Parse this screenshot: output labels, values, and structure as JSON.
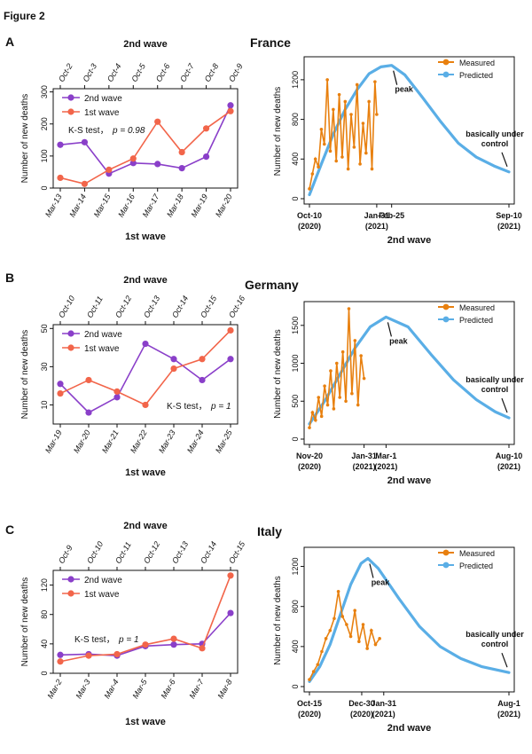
{
  "figure_title": "Figure 2",
  "colors": {
    "wave2": "#8a3fc9",
    "wave1": "#f2654a",
    "measured": "#e8800f",
    "predicted": "#5aaee6",
    "axis": "#111111"
  },
  "panels": [
    {
      "letter": "A",
      "country": "France",
      "left": {
        "top_label": "2nd wave",
        "bottom_label": "1st wave",
        "ylabel": "Number of new deaths",
        "test_label": "K-S test，",
        "test_p": "p = 0.98",
        "legend": [
          "2nd wave",
          "1st wave"
        ]
      },
      "right": {
        "ylabel": "Number of new deaths",
        "xlabel": "2nd wave",
        "legend": [
          "Measured",
          "Predicted"
        ],
        "peak_label": "peak",
        "control_label": [
          "basically under",
          "control"
        ],
        "date_ticks": [
          {
            "label": "Oct-10",
            "year": "(2020)"
          },
          {
            "label": "Jan-31",
            "year": "(2021)"
          },
          {
            "label": "Feb-25",
            "year": ""
          },
          {
            "label": "Sep-10",
            "year": "(2021)"
          }
        ]
      }
    },
    {
      "letter": "B",
      "country": "Germany",
      "left": {
        "top_label": "2nd wave",
        "bottom_label": "1st wave",
        "ylabel": "Number of new deaths",
        "test_label": "K-S test，",
        "test_p": "p = 1",
        "legend": [
          "2nd wave",
          "1st wave"
        ]
      },
      "right": {
        "ylabel": "Number of new deaths",
        "xlabel": "2nd wave",
        "legend": [
          "Measured",
          "Predicted"
        ],
        "peak_label": "peak",
        "control_label": [
          "basically under",
          "control"
        ],
        "date_ticks": [
          {
            "label": "Nov-20",
            "year": "(2020)"
          },
          {
            "label": "Jan-31",
            "year": "(2021)"
          },
          {
            "label": "Mar-1",
            "year": "(2021)"
          },
          {
            "label": "Aug-10",
            "year": "(2021)"
          }
        ]
      }
    },
    {
      "letter": "C",
      "country": "Italy",
      "left": {
        "top_label": "2nd wave",
        "bottom_label": "1st wave",
        "ylabel": "Number of new deaths",
        "test_label": "K-S test，",
        "test_p": "p = 1",
        "legend": [
          "2nd wave",
          "1st wave"
        ]
      },
      "right": {
        "ylabel": "Number of new deaths",
        "xlabel": "2nd wave",
        "legend": [
          "Measured",
          "Predicted"
        ],
        "peak_label": "peak",
        "control_label": [
          "basically under",
          "control"
        ],
        "date_ticks": [
          {
            "label": "Oct-15",
            "year": "(2020)"
          },
          {
            "label": "Dec-30",
            "year": "(2020)"
          },
          {
            "label": "Jan-31",
            "year": "(2021)"
          },
          {
            "label": "Aug-1",
            "year": "(2021)"
          }
        ]
      }
    }
  ],
  "chart_data": [
    {
      "type": "line",
      "panel": "A",
      "country": "France",
      "ylabel": "Number of new deaths",
      "xlabel": "1st wave",
      "top_xlabel": "2nd wave",
      "categories": [
        "Mar-13",
        "Mar-14",
        "Mar-15",
        "Mar-16",
        "Mar-17",
        "Mar-18",
        "Mar-19",
        "Mar-20"
      ],
      "top_categories": [
        "Oct-2",
        "Oct-3",
        "Oct-4",
        "Oct-5",
        "Oct-6",
        "Oct-7",
        "Oct-8",
        "Oct-9"
      ],
      "yticks": [
        0,
        100,
        200,
        300
      ],
      "ylim": [
        0,
        310
      ],
      "series": [
        {
          "name": "2nd wave",
          "values": [
            135,
            143,
            45,
            78,
            75,
            62,
            98,
            258
          ]
        },
        {
          "name": "1st wave",
          "values": [
            32,
            13,
            57,
            92,
            207,
            112,
            186,
            240
          ]
        }
      ],
      "annotation": "K-S test， p = 0.98"
    },
    {
      "type": "line",
      "panel": "A",
      "country": "France",
      "subtype": "time-series",
      "ylabel": "Number of new deaths",
      "xlabel": "2nd wave",
      "x_days_ticks": [
        0,
        113,
        138,
        335
      ],
      "xlim": [
        0,
        335
      ],
      "yticks": [
        0,
        400,
        800,
        1200
      ],
      "ylim": [
        0,
        1360
      ],
      "series": [
        {
          "name": "Measured",
          "x_days": [
            0,
            5,
            10,
            15,
            20,
            25,
            30,
            35,
            40,
            45,
            50,
            55,
            60,
            65,
            70,
            75,
            80,
            85,
            90,
            95,
            100,
            105,
            110,
            113
          ],
          "values": [
            100,
            250,
            400,
            320,
            700,
            550,
            1200,
            480,
            900,
            380,
            1050,
            420,
            980,
            300,
            850,
            520,
            1150,
            350,
            760,
            460,
            980,
            300,
            1180,
            850
          ]
        },
        {
          "name": "Predicted",
          "x_days": [
            0,
            20,
            40,
            60,
            80,
            100,
            120,
            138,
            160,
            190,
            220,
            250,
            280,
            310,
            335
          ],
          "values": [
            40,
            350,
            650,
            900,
            1100,
            1260,
            1330,
            1345,
            1250,
            1020,
            780,
            560,
            420,
            330,
            270
          ]
        }
      ],
      "annotations": [
        "peak",
        "basically under control"
      ]
    },
    {
      "type": "line",
      "panel": "B",
      "country": "Germany",
      "ylabel": "Number of new deaths",
      "xlabel": "1st wave",
      "top_xlabel": "2nd wave",
      "categories": [
        "Mar-19",
        "Mar-20",
        "Mar-21",
        "Mar-22",
        "Mar-23",
        "Mar-24",
        "Mar-25"
      ],
      "top_categories": [
        "Oct-10",
        "Oct-11",
        "Oct-12",
        "Oct-13",
        "Oct-14",
        "Oct-15",
        "Oct-16"
      ],
      "yticks": [
        10,
        30,
        50
      ],
      "ylim": [
        0,
        52
      ],
      "series": [
        {
          "name": "2nd wave",
          "values": [
            21,
            6,
            14,
            42,
            34,
            23,
            34
          ]
        },
        {
          "name": "1st wave",
          "values": [
            16,
            23,
            17,
            10,
            29,
            34,
            49
          ]
        }
      ],
      "annotation": "K-S test， p = 1"
    },
    {
      "type": "line",
      "panel": "B",
      "country": "Germany",
      "subtype": "time-series",
      "ylabel": "Number of new deaths",
      "xlabel": "2nd wave",
      "x_days_ticks": [
        0,
        72,
        101,
        263
      ],
      "xlim": [
        0,
        263
      ],
      "yticks": [
        0,
        500,
        1000,
        1500
      ],
      "ylim": [
        0,
        1720
      ],
      "series": [
        {
          "name": "Measured",
          "x_days": [
            0,
            4,
            8,
            12,
            16,
            20,
            24,
            28,
            32,
            36,
            40,
            44,
            48,
            52,
            56,
            60,
            64,
            68,
            72
          ],
          "values": [
            150,
            350,
            250,
            550,
            300,
            700,
            450,
            900,
            400,
            1000,
            550,
            1150,
            500,
            1720,
            600,
            1300,
            450,
            1100,
            800
          ]
        },
        {
          "name": "Predicted",
          "x_days": [
            0,
            20,
            40,
            60,
            80,
            101,
            130,
            160,
            190,
            220,
            245,
            263
          ],
          "values": [
            200,
            500,
            850,
            1200,
            1480,
            1610,
            1480,
            1120,
            780,
            520,
            360,
            280
          ]
        }
      ],
      "annotations": [
        "peak",
        "basically under control"
      ]
    },
    {
      "type": "line",
      "panel": "C",
      "country": "Italy",
      "ylabel": "Number of new deaths",
      "xlabel": "1st wave",
      "top_xlabel": "2nd wave",
      "categories": [
        "Mar-2",
        "Mar-3",
        "Mar-4",
        "Mar-5",
        "Mar-6",
        "Mar-7",
        "Mar-8"
      ],
      "top_categories": [
        "Oct-9",
        "Oct-10",
        "Oct-11",
        "Oct-12",
        "Oct-13",
        "Oct-14",
        "Oct-15"
      ],
      "yticks": [
        0,
        40,
        80,
        120
      ],
      "ylim": [
        0,
        140
      ],
      "series": [
        {
          "name": "2nd wave",
          "values": [
            25,
            26,
            24,
            37,
            39,
            40,
            82
          ]
        },
        {
          "name": "1st wave",
          "values": [
            16,
            24,
            26,
            39,
            47,
            34,
            133
          ]
        }
      ],
      "annotation": "K-S test， p = 1"
    },
    {
      "type": "line",
      "panel": "C",
      "country": "Italy",
      "subtype": "time-series",
      "ylabel": "Number of new deaths",
      "xlabel": "2nd wave",
      "x_days_ticks": [
        0,
        76,
        108,
        290
      ],
      "xlim": [
        0,
        290
      ],
      "yticks": [
        0,
        400,
        800,
        1200
      ],
      "ylim": [
        0,
        1320
      ],
      "series": [
        {
          "name": "Measured",
          "x_days": [
            0,
            6,
            12,
            18,
            24,
            30,
            36,
            42,
            48,
            54,
            60,
            66,
            72,
            78,
            84,
            90,
            96,
            102
          ],
          "values": [
            70,
            150,
            220,
            350,
            480,
            560,
            680,
            950,
            700,
            620,
            500,
            760,
            450,
            620,
            380,
            560,
            420,
            480
          ]
        },
        {
          "name": "Predicted",
          "x_days": [
            0,
            15,
            30,
            45,
            60,
            75,
            85,
            100,
            130,
            160,
            190,
            220,
            250,
            290
          ],
          "values": [
            50,
            200,
            420,
            720,
            1020,
            1230,
            1280,
            1180,
            880,
            600,
            400,
            280,
            200,
            140
          ]
        }
      ],
      "annotations": [
        "peak",
        "basically under control"
      ]
    }
  ]
}
